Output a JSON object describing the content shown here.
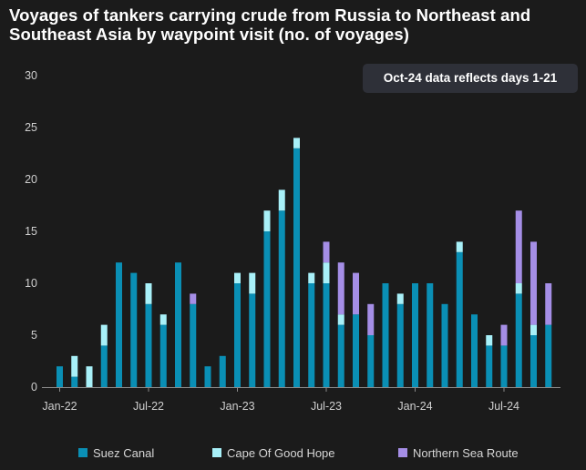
{
  "note": "Oct-24 data reflects days 1-21",
  "colors": {
    "background": "#1b1b1b",
    "suez": "#0a8fb5",
    "cape": "#a8f0f8",
    "nsr": "#a58ee6",
    "axis_text": "#cfcfcf",
    "baseline": "#8a8a8a"
  },
  "chart_data": {
    "type": "bar",
    "stacked": true,
    "title": "Voyages of tankers carrying crude from Russia to Northeast and Southeast Asia by waypoint visit (no. of voyages)",
    "xlabel": "",
    "ylabel": "",
    "ylim": [
      0,
      30
    ],
    "yticks": [
      "0",
      "5",
      "10",
      "15",
      "20",
      "25",
      "30"
    ],
    "xtick_labels": [
      "Jan-22",
      "Jul-22",
      "Jan-23",
      "Jul-23",
      "Jan-24",
      "Jul-24"
    ],
    "xtick_index": [
      0,
      6,
      12,
      18,
      24,
      30
    ],
    "grid": false,
    "legend_position": "bottom",
    "categories": [
      "Jan-22",
      "Feb-22",
      "Mar-22",
      "Apr-22",
      "May-22",
      "Jun-22",
      "Jul-22",
      "Aug-22",
      "Sep-22",
      "Oct-22",
      "Nov-22",
      "Dec-22",
      "Jan-23",
      "Feb-23",
      "Mar-23",
      "Apr-23",
      "May-23",
      "Jun-23",
      "Jul-23",
      "Aug-23",
      "Sep-23",
      "Oct-23",
      "Nov-23",
      "Dec-23",
      "Jan-24",
      "Feb-24",
      "Mar-24",
      "Apr-24",
      "May-24",
      "Jun-24",
      "Jul-24",
      "Aug-24",
      "Sep-24",
      "Oct-24"
    ],
    "series": [
      {
        "name": "Suez Canal",
        "color_key": "suez",
        "values": [
          2,
          1,
          0,
          4,
          12,
          11,
          8,
          6,
          12,
          8,
          2,
          3,
          10,
          9,
          15,
          17,
          23,
          10,
          10,
          6,
          7,
          5,
          10,
          8,
          10,
          10,
          8,
          13,
          7,
          4,
          4,
          9,
          5,
          6
        ]
      },
      {
        "name": "Cape Of Good Hope",
        "color_key": "cape",
        "values": [
          0,
          2,
          2,
          2,
          0,
          0,
          2,
          1,
          0,
          0,
          0,
          0,
          1,
          2,
          2,
          2,
          1,
          1,
          2,
          1,
          0,
          0,
          0,
          1,
          0,
          0,
          0,
          1,
          0,
          1,
          0,
          1,
          1,
          0
        ]
      },
      {
        "name": "Northern Sea Route",
        "color_key": "nsr",
        "values": [
          0,
          0,
          0,
          0,
          0,
          0,
          0,
          0,
          0,
          1,
          0,
          0,
          0,
          0,
          0,
          0,
          0,
          0,
          2,
          5,
          4,
          3,
          0,
          0,
          0,
          0,
          0,
          0,
          0,
          0,
          2,
          7,
          8,
          4
        ]
      }
    ]
  }
}
